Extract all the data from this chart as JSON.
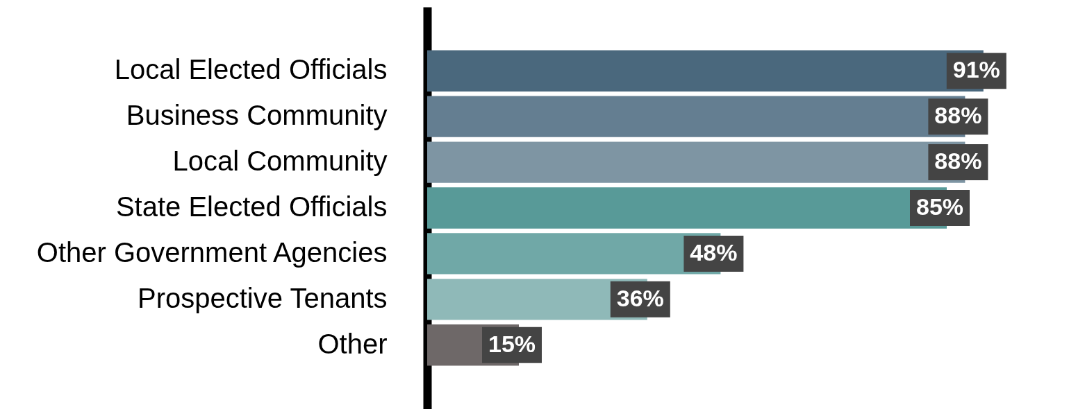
{
  "chart_data": {
    "type": "bar",
    "orientation": "horizontal",
    "categories": [
      "Local Elected Officials",
      "Business Community",
      "Local Community",
      "State Elected Officials",
      "Other Government Agencies",
      "Prospective Tenants",
      "Other"
    ],
    "values": [
      91,
      88,
      88,
      85,
      48,
      36,
      15
    ],
    "value_labels": [
      "91%",
      "88%",
      "88%",
      "85%",
      "48%",
      "36%",
      "15%"
    ],
    "colors": [
      "#4a687d",
      "#647e91",
      "#7e95a3",
      "#589a98",
      "#70a8a7",
      "#8fb9b8",
      "#6e6868"
    ],
    "xlim": [
      0,
      100
    ],
    "tick_labels": "y"
  }
}
